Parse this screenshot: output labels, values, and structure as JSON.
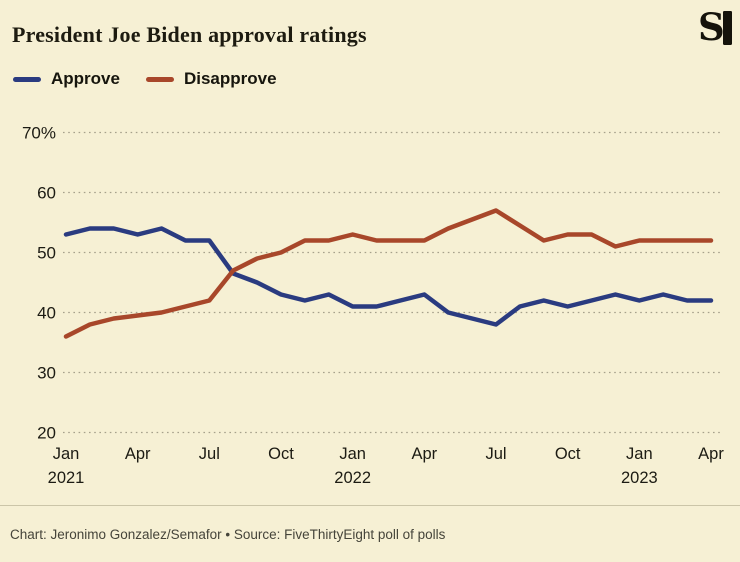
{
  "title": "President Joe Biden approval ratings",
  "legend": [
    {
      "label": "Approve",
      "color": "#2a3b80"
    },
    {
      "label": "Disapprove",
      "color": "#a8472a"
    }
  ],
  "chart_data": {
    "type": "line",
    "title": "President Joe Biden approval ratings",
    "x": [
      "Jan 2021",
      "Feb 2021",
      "Mar 2021",
      "Apr 2021",
      "May 2021",
      "Jun 2021",
      "Jul 2021",
      "Aug 2021",
      "Sep 2021",
      "Oct 2021",
      "Nov 2021",
      "Dec 2021",
      "Jan 2022",
      "Feb 2022",
      "Mar 2022",
      "Apr 2022",
      "May 2022",
      "Jun 2022",
      "Jul 2022",
      "Aug 2022",
      "Sep 2022",
      "Oct 2022",
      "Nov 2022",
      "Dec 2022",
      "Jan 2023",
      "Feb 2023",
      "Mar 2023",
      "Apr 2023"
    ],
    "series": [
      {
        "name": "Approve",
        "color": "#2a3b80",
        "values": [
          53,
          54,
          54,
          53,
          54,
          52,
          52,
          46.5,
          45,
          43,
          42,
          43,
          41,
          41,
          42,
          43,
          40,
          39,
          38,
          41,
          42,
          41,
          42,
          43,
          42,
          43,
          42,
          42
        ]
      },
      {
        "name": "Disapprove",
        "color": "#a8472a",
        "values": [
          36,
          38,
          39,
          39.5,
          40,
          41,
          42,
          47,
          49,
          50,
          52,
          52,
          53,
          52,
          52,
          52,
          54,
          55.5,
          57,
          54.5,
          52,
          53,
          53,
          51,
          52,
          52,
          52,
          52
        ]
      }
    ],
    "ylim": [
      20,
      70
    ],
    "yticks": [
      20,
      30,
      40,
      50,
      60,
      70
    ],
    "ytick_labels": [
      "20",
      "30",
      "40",
      "50",
      "60",
      "70%"
    ],
    "xticks": [
      {
        "i": 0,
        "line1": "Jan",
        "line2": "2021"
      },
      {
        "i": 3,
        "line1": "Apr"
      },
      {
        "i": 6,
        "line1": "Jul"
      },
      {
        "i": 9,
        "line1": "Oct"
      },
      {
        "i": 12,
        "line1": "Jan",
        "line2": "2022"
      },
      {
        "i": 15,
        "line1": "Apr"
      },
      {
        "i": 18,
        "line1": "Jul"
      },
      {
        "i": 21,
        "line1": "Oct"
      },
      {
        "i": 24,
        "line1": "Jan",
        "line2": "2023"
      },
      {
        "i": 27,
        "line1": "Apr"
      }
    ],
    "grid": "horizontal-dotted",
    "legend_position": "top-left"
  },
  "footer": {
    "credit": "Chart: Jeronimo Gonzalez/Semafor • Source: FiveThirtyEight poll of polls",
    "logo": "semafor-logomark",
    "logo_color": "#15130b"
  },
  "colors": {
    "background": "#f6f0d4",
    "grid": "#a6a18b",
    "text": "#1c1b13",
    "footer_text": "#45443a"
  }
}
